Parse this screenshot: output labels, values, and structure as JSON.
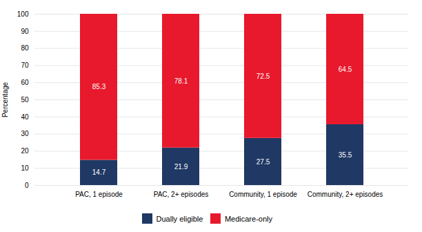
{
  "chart_data": {
    "type": "bar",
    "stacked": true,
    "categories": [
      "PAC, 1 episode",
      "PAC, 2+ episodes",
      "Community, 1 episode",
      "Community, 2+ episodes"
    ],
    "series": [
      {
        "name": "Dually eligible",
        "color": "#1F3864",
        "values": [
          14.7,
          21.9,
          27.5,
          35.5
        ]
      },
      {
        "name": "Medicare-only",
        "color": "#E8192C",
        "values": [
          85.3,
          78.1,
          72.5,
          64.5
        ]
      }
    ],
    "ylabel": "Percentage",
    "ylim": [
      0,
      100
    ],
    "yticks": [
      0,
      10,
      20,
      30,
      40,
      50,
      60,
      70,
      80,
      90,
      100
    ],
    "grid": true,
    "data_labels": true,
    "legend": "bottom"
  }
}
